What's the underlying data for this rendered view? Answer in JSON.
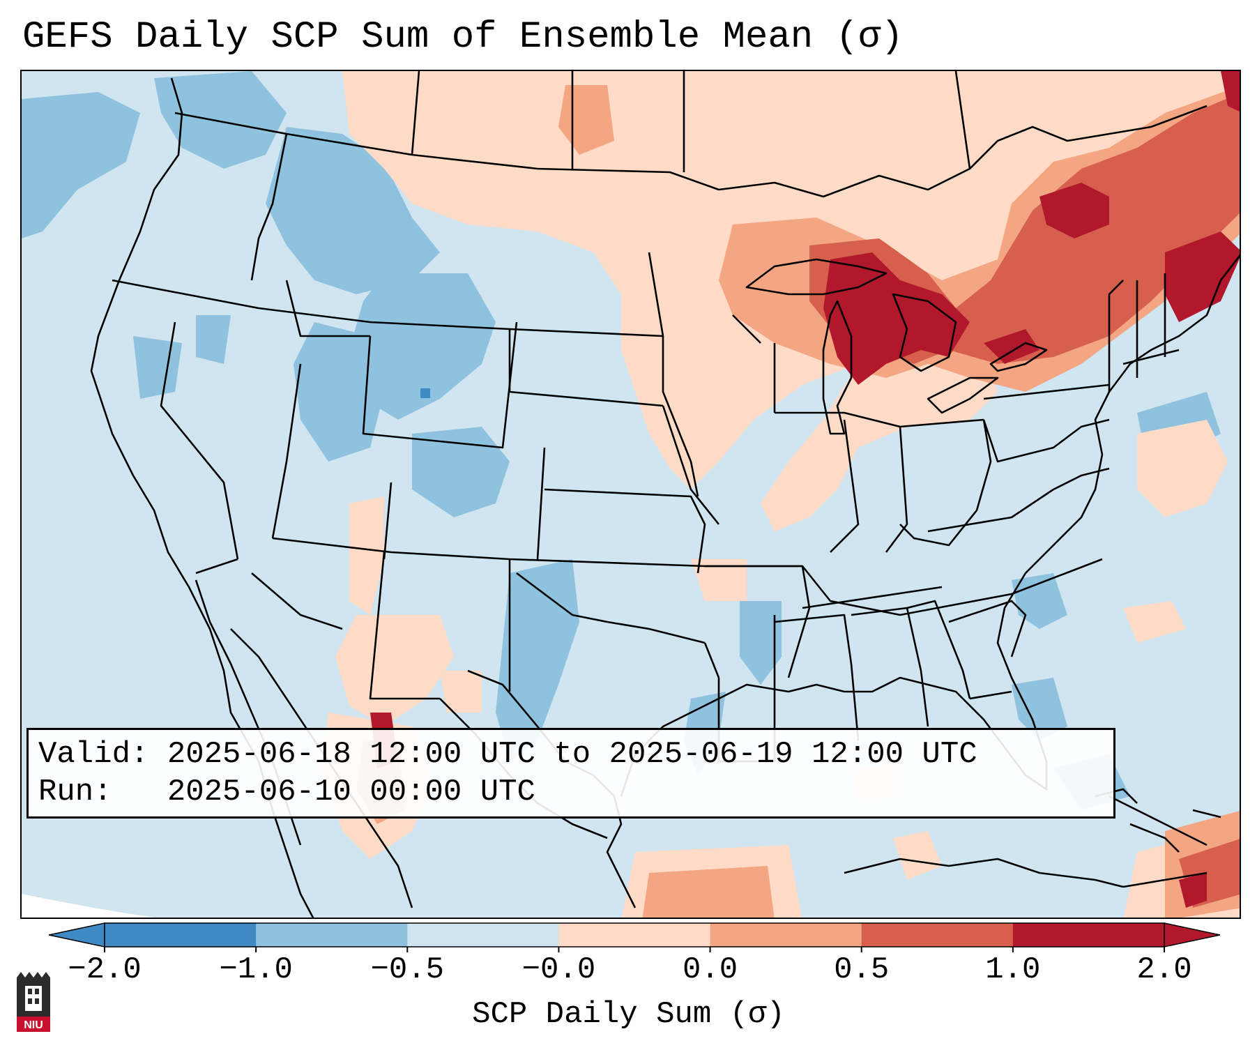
{
  "title": "GEFS Daily SCP Sum of Ensemble Mean (σ)",
  "info": {
    "valid_label": "Valid:",
    "valid_value": "2025-06-18 12:00 UTC to 2025-06-19 12:00 UTC",
    "run_label": "Run:",
    "run_value": "2025-06-10 00:00 UTC"
  },
  "colorbar": {
    "label": "SCP Daily Sum (σ)",
    "ticks": [
      "−2.0",
      "−1.0",
      "−0.5",
      "−0.0",
      "0.0",
      "0.5",
      "1.0",
      "2.0"
    ],
    "colors": [
      "#3f8ac4",
      "#8fc2de",
      "#d1e5f0",
      "#f7f7f7",
      "#fddbc7",
      "#f4a582",
      "#d6604d",
      "#b2182b"
    ]
  },
  "logo": {
    "text": "NIU",
    "color": "#c8102e"
  }
}
